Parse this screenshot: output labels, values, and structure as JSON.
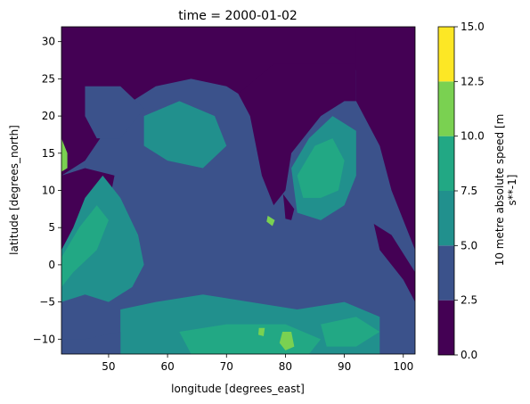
{
  "chart_data": {
    "type": "heatmap",
    "subtype": "filled-contour map",
    "title": "time = 2000-01-02",
    "xlabel": "longitude [degrees_east]",
    "ylabel": "latitude [degrees_north]",
    "xlim": [
      42,
      102
    ],
    "ylim": [
      -12,
      32
    ],
    "x_ticks": [
      "50",
      "60",
      "70",
      "80",
      "90",
      "100"
    ],
    "y_ticks": [
      "30",
      "25",
      "20",
      "15",
      "10",
      "5",
      "0",
      "−5",
      "−10"
    ],
    "colorbar": {
      "label_line1": "10 metre absolute speed [m",
      "label_line2": "s**-1]",
      "levels": [
        0,
        2.5,
        5,
        7.5,
        10,
        12.5,
        15
      ],
      "tick_labels": [
        "0.0",
        "2.5",
        "5.0",
        "7.5",
        "10.0",
        "12.5",
        "15.0"
      ],
      "colors": [
        "#440154",
        "#3b528b",
        "#21908d",
        "#22a884",
        "#7ad151",
        "#fde725"
      ]
    },
    "grid": false,
    "regions": [
      {
        "name": "background",
        "level": 1,
        "points": []
      },
      {
        "name": "arabian-peninsula-land",
        "level": 0,
        "points": [
          [
            42,
            32
          ],
          [
            102,
            32
          ],
          [
            102,
            27
          ],
          [
            90,
            26
          ],
          [
            78,
            23
          ],
          [
            74,
            22
          ],
          [
            70,
            24
          ],
          [
            64,
            25
          ],
          [
            58,
            24
          ],
          [
            52,
            21
          ],
          [
            46,
            14
          ],
          [
            42,
            12
          ]
        ]
      },
      {
        "name": "arabia-coastal-band",
        "level": 1,
        "points": [
          [
            46,
            24
          ],
          [
            52,
            24
          ],
          [
            56,
            21
          ],
          [
            52,
            17
          ],
          [
            48,
            17
          ],
          [
            46,
            20
          ]
        ]
      },
      {
        "name": "horn-of-africa-land",
        "level": 0,
        "points": [
          [
            42,
            12
          ],
          [
            46,
            13
          ],
          [
            51,
            12
          ],
          [
            50,
            8
          ],
          [
            47,
            5
          ],
          [
            44,
            2
          ],
          [
            42,
            -1
          ]
        ]
      },
      {
        "name": "india-land",
        "level": 0,
        "points": [
          [
            72,
            23
          ],
          [
            74,
            20
          ],
          [
            76,
            12
          ],
          [
            78,
            8
          ],
          [
            80,
            10
          ],
          [
            81,
            15
          ],
          [
            86,
            20
          ],
          [
            90,
            22
          ],
          [
            92,
            22
          ],
          [
            92,
            27
          ],
          [
            78,
            27
          ]
        ]
      },
      {
        "name": "sri-lanka",
        "level": 0,
        "points": [
          [
            79.6,
            9.5
          ],
          [
            81.5,
            7.5
          ],
          [
            81,
            6
          ],
          [
            80,
            6.2
          ],
          [
            79.8,
            8
          ]
        ]
      },
      {
        "name": "southeast-asia-land",
        "level": 0,
        "points": [
          [
            92,
            22
          ],
          [
            96,
            16
          ],
          [
            98,
            10
          ],
          [
            100,
            6
          ],
          [
            102,
            2
          ],
          [
            102,
            32
          ],
          [
            92,
            32
          ]
        ]
      },
      {
        "name": "sumatra",
        "level": 0,
        "points": [
          [
            95,
            5.5
          ],
          [
            98,
            4
          ],
          [
            102,
            -1
          ],
          [
            102,
            -5
          ],
          [
            100,
            -2
          ],
          [
            96,
            2
          ]
        ]
      },
      {
        "name": "somali-jet",
        "level": 2,
        "points": [
          [
            42,
            2
          ],
          [
            44,
            5
          ],
          [
            46,
            9
          ],
          [
            49,
            12
          ],
          [
            52,
            9
          ],
          [
            55,
            4
          ],
          [
            56,
            0
          ],
          [
            54,
            -3
          ],
          [
            50,
            -5
          ],
          [
            46,
            -4
          ],
          [
            42,
            -5
          ]
        ]
      },
      {
        "name": "somali-jet-core",
        "level": 3,
        "points": [
          [
            42,
            1
          ],
          [
            45,
            5
          ],
          [
            48,
            8
          ],
          [
            50,
            6
          ],
          [
            48,
            2
          ],
          [
            44,
            -1
          ],
          [
            42,
            -3
          ]
        ]
      },
      {
        "name": "arabian-sea-mid",
        "level": 2,
        "points": [
          [
            56,
            20
          ],
          [
            62,
            22
          ],
          [
            68,
            20
          ],
          [
            70,
            16
          ],
          [
            66,
            13
          ],
          [
            60,
            14
          ],
          [
            56,
            16
          ]
        ]
      },
      {
        "name": "bay-of-bengal",
        "level": 2,
        "points": [
          [
            81,
            13
          ],
          [
            84,
            17
          ],
          [
            88,
            20
          ],
          [
            92,
            18
          ],
          [
            92,
            12
          ],
          [
            90,
            8
          ],
          [
            86,
            6
          ],
          [
            82,
            7
          ]
        ]
      },
      {
        "name": "bay-of-bengal-core",
        "level": 3,
        "points": [
          [
            82,
            12
          ],
          [
            85,
            16
          ],
          [
            88,
            17
          ],
          [
            90,
            14
          ],
          [
            89,
            10
          ],
          [
            86,
            9
          ],
          [
            83,
            9
          ]
        ]
      },
      {
        "name": "southern-trade-wind-band",
        "level": 2,
        "points": [
          [
            52,
            -6
          ],
          [
            58,
            -5
          ],
          [
            66,
            -4
          ],
          [
            74,
            -5
          ],
          [
            82,
            -6
          ],
          [
            90,
            -5
          ],
          [
            96,
            -7
          ],
          [
            96,
            -12
          ],
          [
            52,
            -12
          ]
        ]
      },
      {
        "name": "southern-jet-core-a",
        "level": 3,
        "points": [
          [
            62,
            -9
          ],
          [
            70,
            -8
          ],
          [
            80,
            -8
          ],
          [
            86,
            -10
          ],
          [
            84,
            -12
          ],
          [
            64,
            -12
          ]
        ]
      },
      {
        "name": "southern-jet-core-b",
        "level": 3,
        "points": [
          [
            86,
            -8
          ],
          [
            92,
            -7
          ],
          [
            96,
            -9
          ],
          [
            92,
            -11
          ],
          [
            87,
            -11
          ]
        ]
      },
      {
        "name": "southern-jet-peak-1",
        "level": 4,
        "points": [
          [
            79.5,
            -9
          ],
          [
            81,
            -9
          ],
          [
            81.5,
            -11
          ],
          [
            80,
            -11.5
          ],
          [
            79,
            -10.5
          ]
        ]
      },
      {
        "name": "southern-jet-peak-2",
        "level": 4,
        "points": [
          [
            75.5,
            -8.5
          ],
          [
            76.5,
            -8.5
          ],
          [
            76.3,
            -9.6
          ],
          [
            75.4,
            -9.4
          ]
        ]
      },
      {
        "name": "sri-lanka-peak",
        "level": 4,
        "points": [
          [
            77,
            6.6
          ],
          [
            78.2,
            6
          ],
          [
            77.8,
            5.2
          ],
          [
            76.8,
            5.8
          ]
        ]
      },
      {
        "name": "ne-africa-peak",
        "level": 4,
        "points": [
          [
            42,
            17
          ],
          [
            43,
            15
          ],
          [
            43,
            13
          ],
          [
            42,
            12.5
          ]
        ]
      },
      {
        "name": "southern-land-edge",
        "level": 1,
        "points": [
          [
            42,
            -12
          ],
          [
            52,
            -12
          ],
          [
            52,
            -9
          ],
          [
            46,
            -10
          ],
          [
            42,
            -10
          ]
        ]
      }
    ]
  }
}
